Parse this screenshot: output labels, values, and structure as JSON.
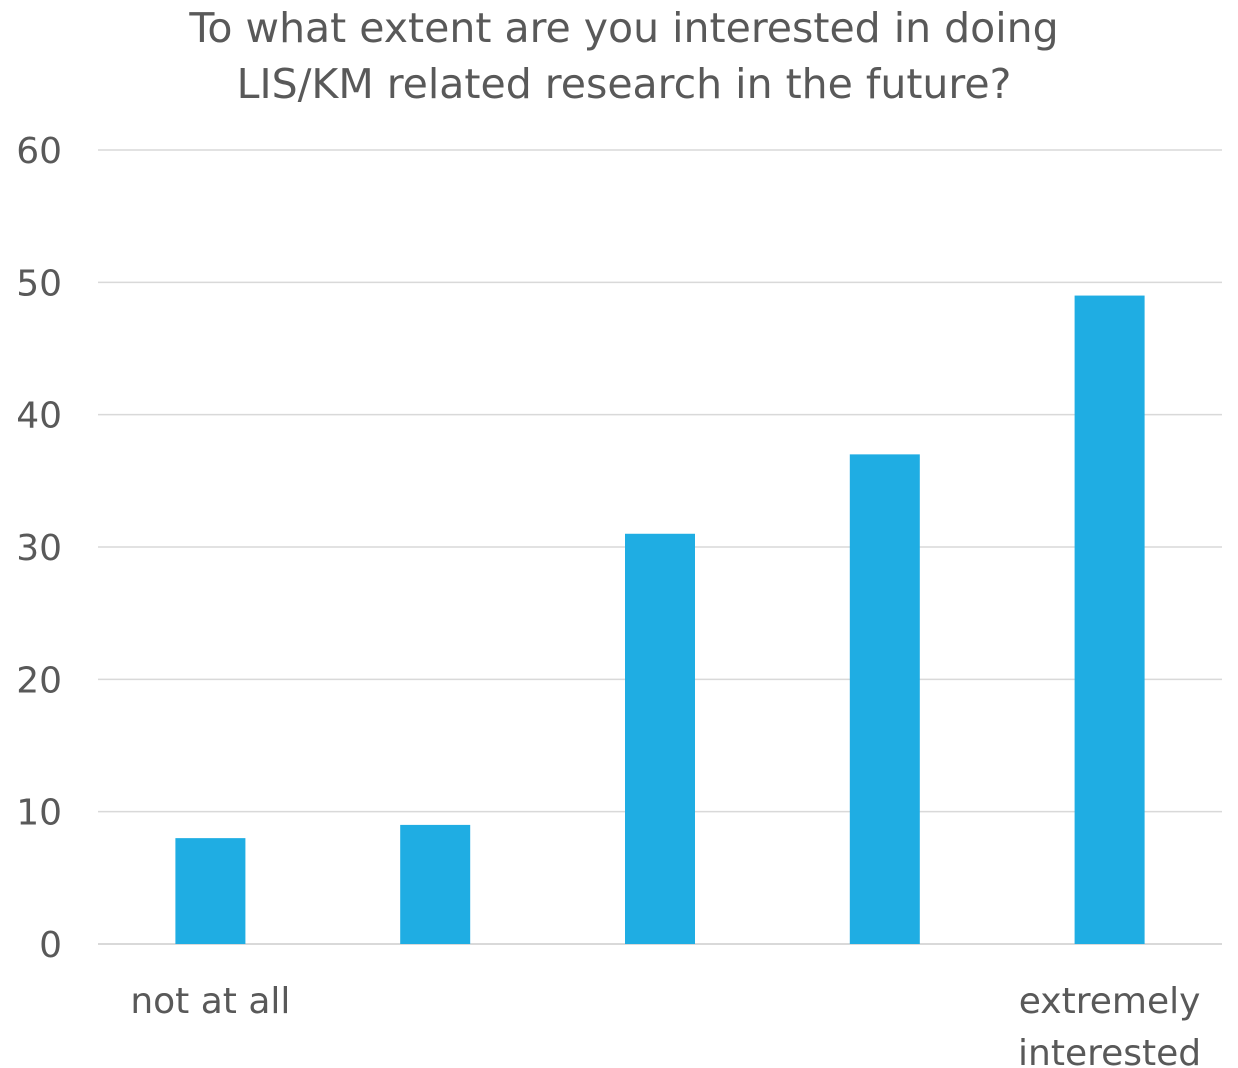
{
  "chart_data": {
    "type": "bar",
    "title_lines": [
      "To what extent are you interested in doing",
      "LIS/KM related research in the future?"
    ],
    "categories": [
      "1",
      "2",
      "3",
      "4",
      "5"
    ],
    "category_labels": [
      [
        "not at all"
      ],
      [],
      [],
      [],
      [
        "extremely",
        "interested"
      ]
    ],
    "values": [
      8,
      9,
      31,
      37,
      49
    ],
    "ylim": [
      0,
      60
    ],
    "yticks": [
      0,
      10,
      20,
      30,
      40,
      50,
      60
    ],
    "xlabel": "",
    "ylabel": "",
    "grid": true,
    "bar_color": "#1fade3",
    "legend": "none"
  }
}
